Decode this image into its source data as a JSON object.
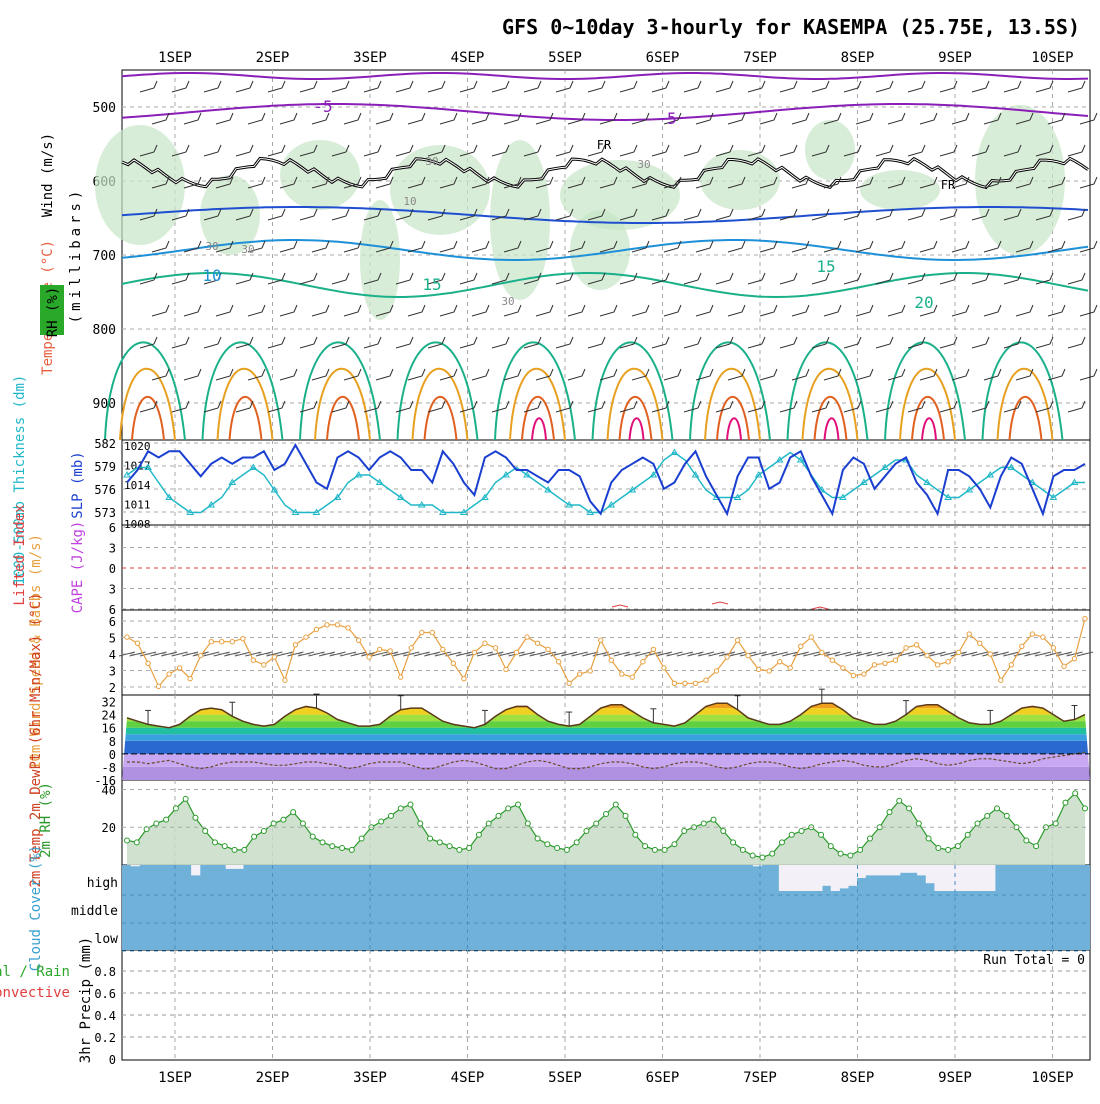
{
  "title": "GFS 0~10day 3-hourly for KASEMPA (25.75E, 13.5S)",
  "days": [
    "1SEP",
    "2SEP",
    "3SEP",
    "4SEP",
    "5SEP",
    "6SEP",
    "7SEP",
    "8SEP",
    "9SEP",
    "10SEP"
  ],
  "colors": {
    "temp_minus5": "#8a1fb8",
    "temp_cool": "#1f4fd0",
    "temp_mid": "#1e90d8",
    "temp_warm": "#1ab08a",
    "temp_hot": "#e8a020",
    "temp_hotter": "#e06020",
    "temp_hottest": "#e0107a",
    "rh_fill": "#c8e6c8",
    "slp_line": "#1a3fd0",
    "thickness_line": "#20b8c8",
    "wind_line": "#e8a040",
    "rh_line": "#2a9a2a",
    "cloud_fill": "#6fb1d8",
    "precip_grid": "#999999"
  },
  "panels": {
    "upper_air": {
      "ylabel_wind": "Wind (m/s)",
      "ylabel_temp": "Temperature (°C)",
      "ylabel_rh": "RH (%)",
      "ylabel_mb": "(millibars)",
      "ticks": [
        "500",
        "600",
        "700",
        "800",
        "900"
      ],
      "labels": [
        "-5",
        "-5",
        "10",
        "15",
        "15",
        "20",
        "FR",
        "FR",
        "30",
        "30",
        "30",
        "30",
        "30",
        "10"
      ]
    },
    "slp": {
      "ylabel_thick": "1000-500mb Thickness (dm)",
      "ylabel_slp": "SLP (mb)",
      "ticks_left": [
        "582",
        "579",
        "576",
        "573"
      ],
      "ticks_right": [
        "1020",
        "1017",
        "1014",
        "1011",
        "1008"
      ]
    },
    "stability": {
      "ylabel_li": "Lifted Index",
      "ylabel_cape": "CAPE (J/kg)",
      "ticks": [
        "6",
        "3",
        "0",
        "3",
        "6"
      ]
    },
    "wind10": {
      "ylabel": "10m Wind Speed & Barbs (m/s)",
      "ticks": [
        "6",
        "5",
        "4",
        "3",
        "2"
      ]
    },
    "temp2m": {
      "ylabel": "2m Temp 2m DewPt (6hr Min/Max) (°C)",
      "ticks": [
        "32",
        "24",
        "16",
        "8",
        "0",
        "-8",
        "-16"
      ]
    },
    "rh2m": {
      "ylabel": "2m RH (%)",
      "ticks": [
        "40",
        "20"
      ]
    },
    "cloud": {
      "ylabel": "Cloud Cover (%)",
      "levels": [
        "high",
        "middle",
        "low"
      ]
    },
    "precip": {
      "ylabel_total": "Total / Rain",
      "ylabel_conv": "Convective",
      "ylabel": "3hr Precip (mm)",
      "ticks": [
        "0.8",
        "0.6",
        "0.4",
        "0.2",
        "0"
      ],
      "run_total": "Run Total = 0"
    }
  },
  "chart_data": [
    {
      "type": "line",
      "title": "SLP (mb)",
      "ylim": [
        1008,
        1020
      ],
      "series": [
        {
          "name": "SLP (mb)",
          "values": [
            1014,
            1016,
            1019,
            1018,
            1019,
            1019,
            1017,
            1015,
            1017,
            1018,
            1017,
            1018,
            1018,
            1019,
            1016,
            1017,
            1020,
            1017,
            1014,
            1013,
            1018,
            1019,
            1018,
            1016,
            1018,
            1019,
            1018,
            1016,
            1016,
            1014,
            1019,
            1017,
            1014,
            1012,
            1018,
            1019,
            1018,
            1016,
            1016,
            1015,
            1014,
            1016,
            1016,
            1015,
            1011,
            1009,
            1014,
            1016,
            1017,
            1018,
            1017,
            1013,
            1014,
            1017,
            1019,
            1015,
            1012,
            1009,
            1015,
            1018,
            1018,
            1013,
            1014,
            1018,
            1019,
            1015,
            1012,
            1009,
            1016,
            1018,
            1017,
            1013,
            1015,
            1017,
            1018,
            1014,
            1012,
            1009,
            1016,
            1016,
            1015,
            1013,
            1010,
            1015,
            1018,
            1017,
            1013,
            1009,
            1015,
            1016,
            1016,
            1017
          ]
        }
      ]
    },
    {
      "type": "line",
      "title": "1000-500mb Thickness (dm)",
      "ylim": [
        572,
        582
      ],
      "series": [
        {
          "name": "Thickness (dm)",
          "values": [
            578,
            579,
            579,
            577,
            575,
            574,
            573,
            573,
            574,
            575,
            577,
            578,
            579,
            578,
            576,
            574,
            573,
            573,
            573,
            574,
            575,
            577,
            578,
            578,
            577,
            576,
            575,
            574,
            574,
            574,
            573,
            573,
            573,
            574,
            575,
            577,
            578,
            579,
            578,
            577,
            576,
            575,
            574,
            574,
            573,
            573,
            574,
            575,
            576,
            577,
            578,
            580,
            581,
            580,
            578,
            576,
            575,
            575,
            575,
            576,
            578,
            579,
            580,
            581,
            580,
            578,
            576,
            575,
            575,
            576,
            577,
            578,
            579,
            580,
            580,
            578,
            577,
            576,
            575,
            575,
            576,
            577,
            578,
            579,
            579,
            578,
            577,
            576,
            575,
            576,
            577,
            577
          ]
        }
      ]
    },
    {
      "type": "line",
      "title": "10m Wind Speed (m/s)",
      "ylim": [
        1.5,
        6.5
      ],
      "series": [
        {
          "name": "10m Wind Speed",
          "values": [
            5.0,
            4.6,
            3.3,
            1.8,
            2.6,
            3.0,
            2.3,
            3.8,
            4.7,
            4.7,
            4.7,
            4.9,
            3.5,
            3.2,
            3.7,
            2.2,
            4.5,
            5.0,
            5.5,
            5.8,
            5.8,
            5.6,
            4.8,
            3.7,
            4.2,
            4.1,
            2.4,
            4.3,
            5.3,
            5.3,
            4.2,
            3.3,
            2.3,
            4.0,
            4.6,
            4.3,
            2.9,
            4.0,
            5.0,
            4.6,
            4.2,
            3.4,
            2.0,
            2.6,
            2.8,
            4.8,
            3.5,
            2.6,
            2.4,
            3.4,
            4.2,
            3.0,
            2.0,
            2.0,
            2.0,
            2.2,
            2.8,
            3.7,
            4.8,
            3.8,
            2.9,
            2.8,
            3.4,
            3.0,
            4.4,
            5.0,
            4.0,
            3.5,
            3.0,
            2.5,
            2.6,
            3.2,
            3.3,
            3.5,
            4.3,
            4.5,
            3.8,
            3.2,
            3.4,
            4.0,
            5.2,
            4.6,
            3.9,
            2.2,
            3.2,
            4.4,
            5.2,
            5.0,
            4.3,
            3.1,
            3.6,
            6.2
          ]
        }
      ]
    },
    {
      "type": "area",
      "title": "2m Temp (°C)",
      "ylim": [
        -16,
        32
      ],
      "series": [
        {
          "name": "2m Temp",
          "values": [
            22,
            20,
            18,
            17,
            16,
            18,
            23,
            27,
            28,
            27,
            23,
            20,
            18,
            17,
            18,
            23,
            27,
            29,
            28,
            25,
            21,
            19,
            17,
            17,
            18,
            23,
            27,
            28,
            28,
            24,
            20,
            18,
            17,
            16,
            18,
            23,
            27,
            29,
            29,
            24,
            20,
            18,
            17,
            18,
            23,
            28,
            30,
            30,
            26,
            22,
            19,
            18,
            17,
            19,
            24,
            29,
            31,
            31,
            27,
            22,
            20,
            18,
            18,
            20,
            24,
            29,
            31,
            31,
            27,
            22,
            20,
            18,
            18,
            20,
            24,
            29,
            30,
            30,
            26,
            22,
            19,
            18,
            18,
            20,
            24,
            28,
            29,
            28,
            24,
            20,
            21,
            24
          ]
        },
        {
          "name": "2m DewPt",
          "values": [
            -5,
            -5,
            -6,
            -5,
            -4,
            -6,
            -8,
            -9,
            -8,
            -6,
            -5,
            -5,
            -5,
            -6,
            -7,
            -7,
            -6,
            -5,
            -5,
            -6,
            -7,
            -9,
            -8,
            -6,
            -5,
            -5,
            -5,
            -7,
            -9,
            -9,
            -7,
            -5,
            -4,
            -5,
            -7,
            -9,
            -9,
            -7,
            -5,
            -4,
            -5,
            -7,
            -9,
            -9,
            -8,
            -6,
            -5,
            -5,
            -6,
            -8,
            -9,
            -8,
            -6,
            -5,
            -5,
            -6,
            -8,
            -9,
            -8,
            -6,
            -5,
            -5,
            -6,
            -8,
            -9,
            -8,
            -6,
            -5,
            -4,
            -5,
            -7,
            -8,
            -8,
            -6,
            -4,
            -3,
            -4,
            -6,
            -7,
            -6,
            -4,
            -3,
            -3,
            -4,
            -5,
            -6,
            -5,
            -3,
            -2,
            -1,
            0,
            1
          ]
        }
      ]
    },
    {
      "type": "area",
      "title": "2m RH (%)",
      "ylim": [
        0,
        45
      ],
      "series": [
        {
          "name": "2m RH",
          "values": [
            13,
            12,
            19,
            22,
            24,
            30,
            35,
            25,
            18,
            12,
            10,
            8,
            8,
            15,
            18,
            22,
            24,
            28,
            22,
            15,
            12,
            10,
            9,
            8,
            14,
            20,
            23,
            26,
            30,
            32,
            22,
            14,
            12,
            10,
            8,
            9,
            16,
            22,
            26,
            30,
            32,
            22,
            14,
            11,
            9,
            8,
            12,
            18,
            22,
            27,
            32,
            26,
            16,
            10,
            8,
            8,
            11,
            18,
            20,
            22,
            24,
            18,
            12,
            8,
            5,
            4,
            6,
            12,
            16,
            18,
            20,
            16,
            10,
            6,
            5,
            8,
            14,
            20,
            28,
            34,
            30,
            22,
            14,
            9,
            8,
            10,
            16,
            22,
            26,
            30,
            26,
            20,
            13,
            10,
            20,
            22,
            33,
            38,
            30
          ]
        }
      ]
    },
    {
      "type": "bar",
      "title": "Cloud Cover high (%)",
      "ylim": [
        0,
        100
      ],
      "series": [
        {
          "name": "high",
          "values": [
            0,
            5,
            0,
            0,
            0,
            0,
            0,
            0,
            40,
            0,
            0,
            0,
            15,
            15,
            0,
            0,
            0,
            0,
            0,
            0,
            0,
            0,
            0,
            0,
            0,
            0,
            0,
            0,
            0,
            0,
            0,
            0,
            0,
            0,
            0,
            0,
            0,
            0,
            0,
            0,
            0,
            0,
            0,
            0,
            0,
            0,
            0,
            0,
            0,
            0,
            0,
            0,
            0,
            0,
            0,
            0,
            0,
            0,
            0,
            0,
            0,
            0,
            0,
            0,
            0,
            0,
            0,
            0,
            0,
            0,
            0,
            0,
            0,
            5,
            0,
            0,
            100,
            100,
            100,
            100,
            100,
            80,
            100,
            90,
            80,
            50,
            40,
            40,
            40,
            40,
            30,
            30,
            40,
            70,
            100,
            100,
            100,
            100,
            100,
            100,
            100,
            0,
            0,
            0,
            0,
            0,
            0,
            0,
            0,
            0,
            0,
            0
          ]
        }
      ]
    }
  ]
}
